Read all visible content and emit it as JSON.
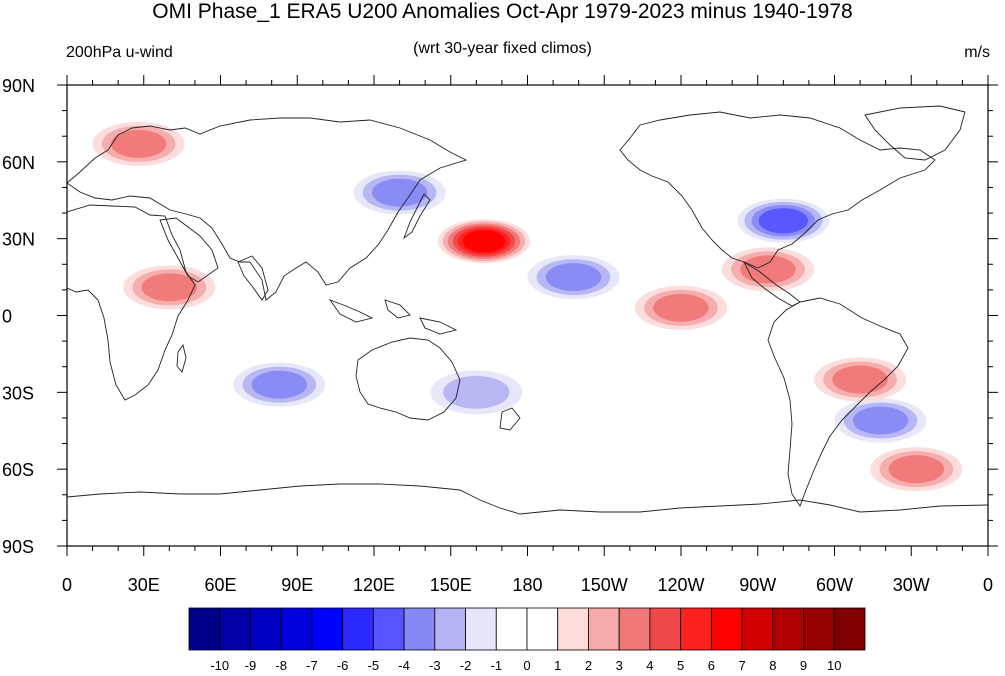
{
  "title": "OMI Phase_1 ERA5 U200 Anomalies Oct-Apr 1979-2023 minus 1940-1978",
  "left_string": "200hPa u-wind",
  "center_string": "(wrt 30-year fixed climos)",
  "right_string": "m/s",
  "map": {
    "projection": "cylindrical equidistant",
    "lat_labels": [
      "90N",
      "60N",
      "30N",
      "0",
      "30S",
      "60S",
      "90S"
    ],
    "lon_labels": [
      "0",
      "30E",
      "60E",
      "90E",
      "120E",
      "150E",
      "180",
      "150W",
      "120W",
      "90W",
      "60W",
      "30W",
      "0"
    ],
    "lon_range": [
      0,
      360
    ],
    "lat_range": [
      -90,
      90
    ],
    "anomaly_centers": [
      {
        "lon": 163,
        "lat": 29,
        "value": 6
      },
      {
        "lon": 40,
        "lat": 11,
        "value": 3
      },
      {
        "lon": 28,
        "lat": 67,
        "value": 3
      },
      {
        "lon": 280,
        "lat": 37,
        "value": -4
      },
      {
        "lon": 83,
        "lat": -27,
        "value": -3
      },
      {
        "lon": 198,
        "lat": 15,
        "value": -3
      },
      {
        "lon": 130,
        "lat": 48,
        "value": -3
      },
      {
        "lon": 318,
        "lat": -41,
        "value": -3
      },
      {
        "lon": 274,
        "lat": 18,
        "value": 3
      },
      {
        "lon": 240,
        "lat": 3,
        "value": 3
      },
      {
        "lon": 310,
        "lat": -25,
        "value": 3
      },
      {
        "lon": 332,
        "lat": -60,
        "value": 3
      },
      {
        "lon": 160,
        "lat": -30,
        "value": -2
      }
    ]
  },
  "colorbar": {
    "labels": [
      "-10",
      "-9",
      "-8",
      "-7",
      "-6",
      "-5",
      "-4",
      "-3",
      "-2",
      "-1",
      "0",
      "1",
      "2",
      "3",
      "4",
      "5",
      "6",
      "7",
      "8",
      "9",
      "10"
    ],
    "colors": [
      "#00008b",
      "#0000a5",
      "#0000c2",
      "#0000dd",
      "#0000ff",
      "#2a2aff",
      "#5555ff",
      "#8888f5",
      "#b4b4f2",
      "#e6e6fa",
      "#ffffff",
      "#ffffff",
      "#fcdbdb",
      "#f6aaaa",
      "#f07878",
      "#f04848",
      "#ff2020",
      "#ff0000",
      "#d40000",
      "#b00000",
      "#960000",
      "#800000"
    ]
  }
}
